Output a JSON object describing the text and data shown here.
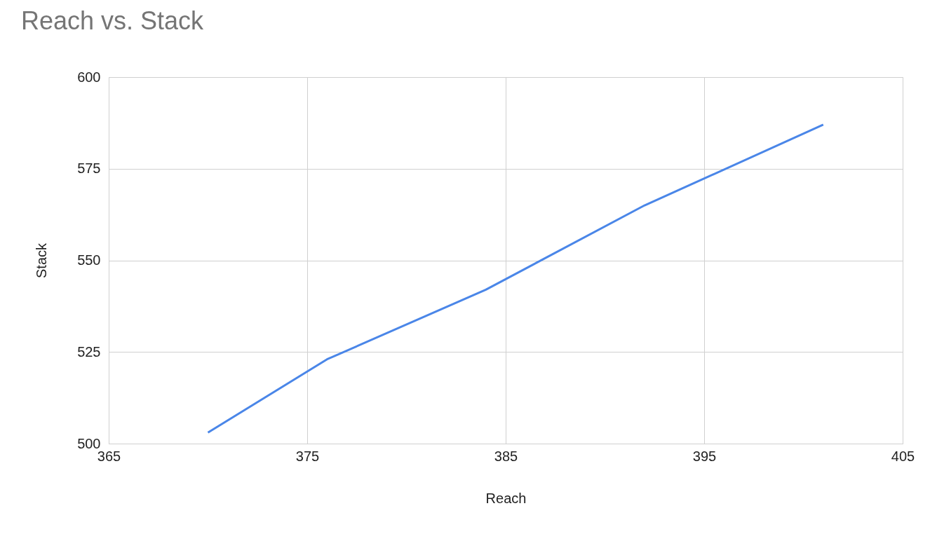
{
  "chart_data": {
    "type": "line",
    "title": "Reach vs. Stack",
    "xlabel": "Reach",
    "ylabel": "Stack",
    "x": [
      370,
      376,
      384,
      392,
      401
    ],
    "series": [
      {
        "color": "#4a86e8",
        "values": [
          503,
          523,
          542,
          565,
          587
        ]
      }
    ],
    "xlim": [
      365,
      405
    ],
    "xticks": [
      365,
      375,
      385,
      395,
      405
    ],
    "ylim": [
      500,
      600
    ],
    "yticks": [
      500,
      525,
      550,
      575,
      600
    ],
    "grid": true,
    "legend": false,
    "marker": "none",
    "line_style": "solid"
  }
}
